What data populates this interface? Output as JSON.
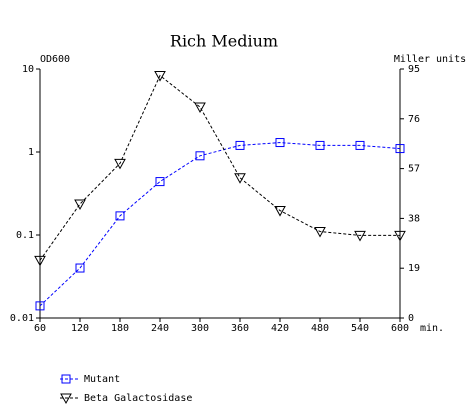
{
  "chart_data": {
    "type": "line",
    "title": "Rich Medium",
    "xlabel": "min.",
    "ylabel": "OD600",
    "y2label": "Miller units",
    "x": [
      60,
      120,
      180,
      240,
      300,
      360,
      420,
      480,
      540,
      600
    ],
    "series": [
      {
        "name": "Mutant",
        "color": "#0000ff",
        "marker": "square",
        "values": [
          0.014,
          0.04,
          0.17,
          0.44,
          0.9,
          1.2,
          1.3,
          1.2,
          1.2,
          1.1
        ]
      },
      {
        "name": "Beta Galactosidase",
        "color": "#000000",
        "marker": "triangle-down",
        "axis": "y2",
        "values": [
          22,
          43.5,
          59,
          92.5,
          80.5,
          53.5,
          41,
          33,
          31.5,
          31.5
        ]
      }
    ],
    "xlim": [
      60,
      600
    ],
    "xticks": [
      60,
      120,
      180,
      240,
      300,
      360,
      420,
      480,
      540,
      600
    ],
    "ylim": [
      0.01,
      10
    ],
    "yticks": [
      0.01,
      0.1,
      1,
      10
    ],
    "ylog": true,
    "y2lim": [
      0,
      95
    ],
    "y2ticks": [
      0,
      19,
      38,
      57,
      76,
      95
    ],
    "legend": "bottom-left",
    "grid": false
  }
}
